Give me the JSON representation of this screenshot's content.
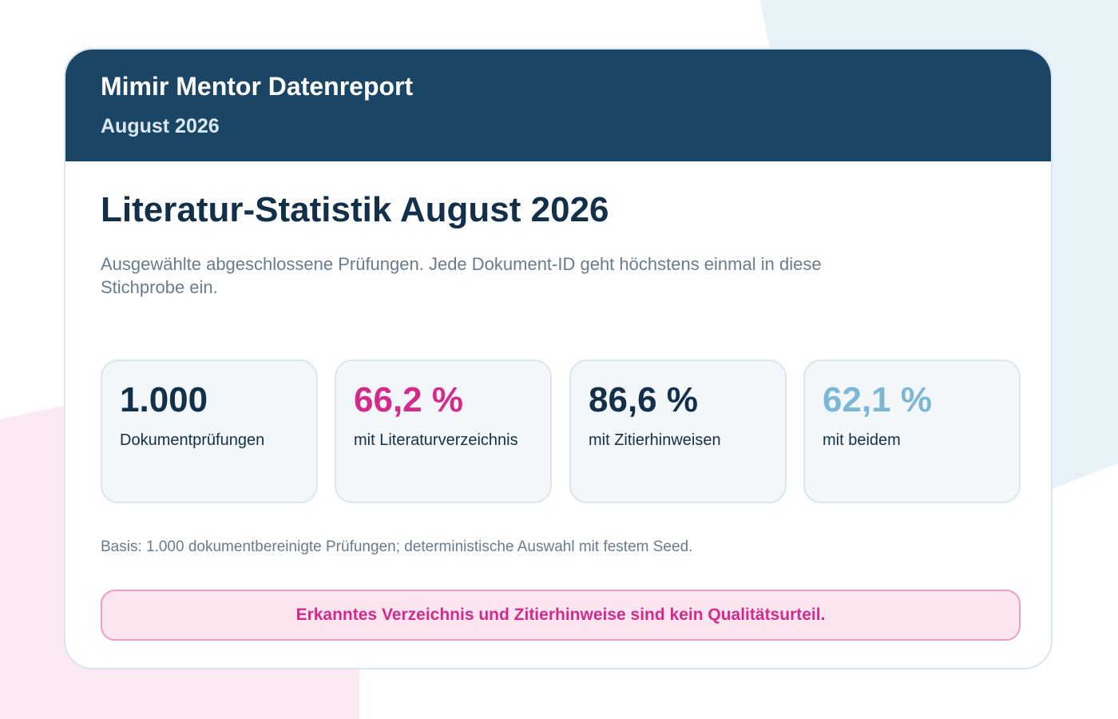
{
  "colors": {
    "header_bg": "#1b4565",
    "accent_pink": "#d42a8c",
    "accent_light_blue": "#7db7d6",
    "dark_navy": "#13304a",
    "muted_text": "#687c8e"
  },
  "header": {
    "brand": "Mimir Mentor Datenreport",
    "period": "August 2026"
  },
  "main": {
    "title": "Literatur-Statistik August 2026",
    "description": "Ausgewählte abgeschlossene Prüfungen. Jede Dokument-ID geht höchstens einmal in diese Stichprobe ein."
  },
  "stats": [
    {
      "value": "1.000",
      "label": "Dokumentprüfungen",
      "color": "#13304a"
    },
    {
      "value": "66,2 %",
      "label": "mit Literaturverzeichnis",
      "color": "#d42a8c"
    },
    {
      "value": "86,6 %",
      "label": "mit Zitierhinweisen",
      "color": "#13304a"
    },
    {
      "value": "62,1 %",
      "label": "mit beidem",
      "color": "#7db7d6"
    }
  ],
  "basis": "Basis: 1.000 dokumentbereinigte Prüfungen; deterministische Auswahl mit festem Seed.",
  "notice": "Erkanntes Verzeichnis und Zitierhinweise sind kein Qualitätsurteil."
}
